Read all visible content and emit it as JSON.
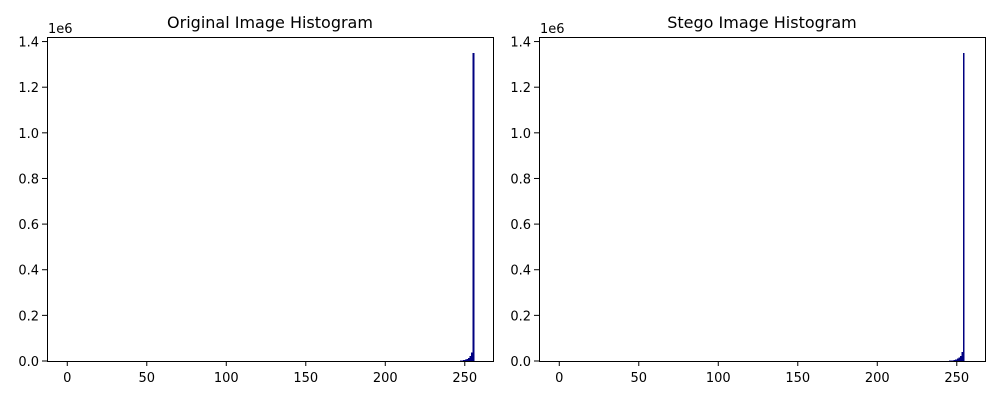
{
  "chart_data": [
    {
      "type": "bar",
      "title": "Original Image Histogram",
      "xlabel": "",
      "ylabel": "",
      "xlim": [
        -12.75,
        267.75
      ],
      "ylim": [
        0,
        1420000
      ],
      "y_offset_label": "1e6",
      "xticks": [
        0,
        50,
        100,
        150,
        200,
        250
      ],
      "xtick_labels": [
        "0",
        "50",
        "100",
        "150",
        "200",
        "250"
      ],
      "yticks": [
        0,
        200000,
        400000,
        600000,
        800000,
        1000000,
        1200000,
        1400000
      ],
      "ytick_labels": [
        "0.0",
        "0.2",
        "0.4",
        "0.6",
        "0.8",
        "1.0",
        "1.2",
        "1.4"
      ],
      "color": "#000080",
      "bins": [
        246,
        247,
        248,
        249,
        250,
        251,
        252,
        253,
        254,
        255
      ],
      "values": [
        1000,
        1500,
        2500,
        4000,
        6000,
        9000,
        14000,
        22000,
        38000,
        1350000
      ]
    },
    {
      "type": "bar",
      "title": "Stego Image Histogram",
      "xlabel": "",
      "ylabel": "",
      "xlim": [
        -12.75,
        267.75
      ],
      "ylim": [
        0,
        1420000
      ],
      "y_offset_label": "1e6",
      "xticks": [
        0,
        50,
        100,
        150,
        200,
        250
      ],
      "xtick_labels": [
        "0",
        "50",
        "100",
        "150",
        "200",
        "250"
      ],
      "yticks": [
        0,
        200000,
        400000,
        600000,
        800000,
        1000000,
        1200000,
        1400000
      ],
      "ytick_labels": [
        "0.0",
        "0.2",
        "0.4",
        "0.6",
        "0.8",
        "1.0",
        "1.2",
        "1.4"
      ],
      "color": "#000080",
      "bins": [
        244,
        245,
        246,
        247,
        248,
        249,
        250,
        251,
        252,
        253,
        254
      ],
      "values": [
        800,
        1200,
        1800,
        2800,
        4200,
        6500,
        10000,
        15000,
        22000,
        40000,
        1350000
      ]
    }
  ]
}
